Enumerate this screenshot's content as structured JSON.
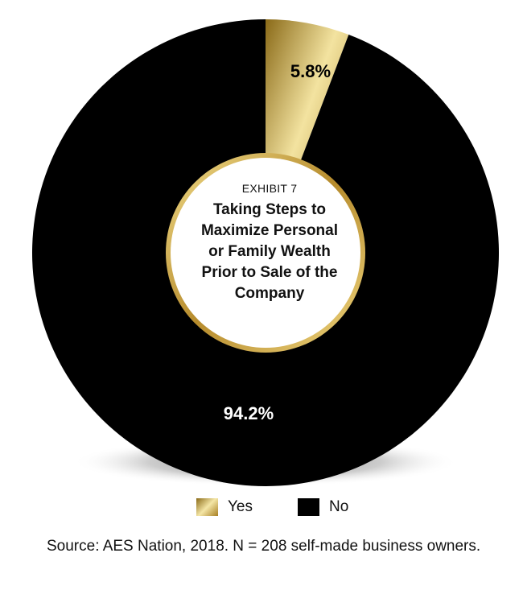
{
  "exhibit_label": "EXHIBIT 7",
  "center_title_lines": [
    "Taking Steps to",
    "Maximize Personal",
    "or Family Wealth",
    "Prior to Sale of the",
    "Company"
  ],
  "source": "Source: AES Nation, 2018. N = 208 self-made business owners.",
  "chart_data": {
    "type": "pie",
    "variant": "donut",
    "categories": [
      "Yes",
      "No"
    ],
    "values": [
      5.8,
      94.2
    ],
    "labels": [
      "5.8%",
      "94.2%"
    ],
    "colors": [
      "#c9a640",
      "#000000"
    ],
    "legend": [
      "Yes",
      "No"
    ],
    "legend_position": "bottom"
  }
}
